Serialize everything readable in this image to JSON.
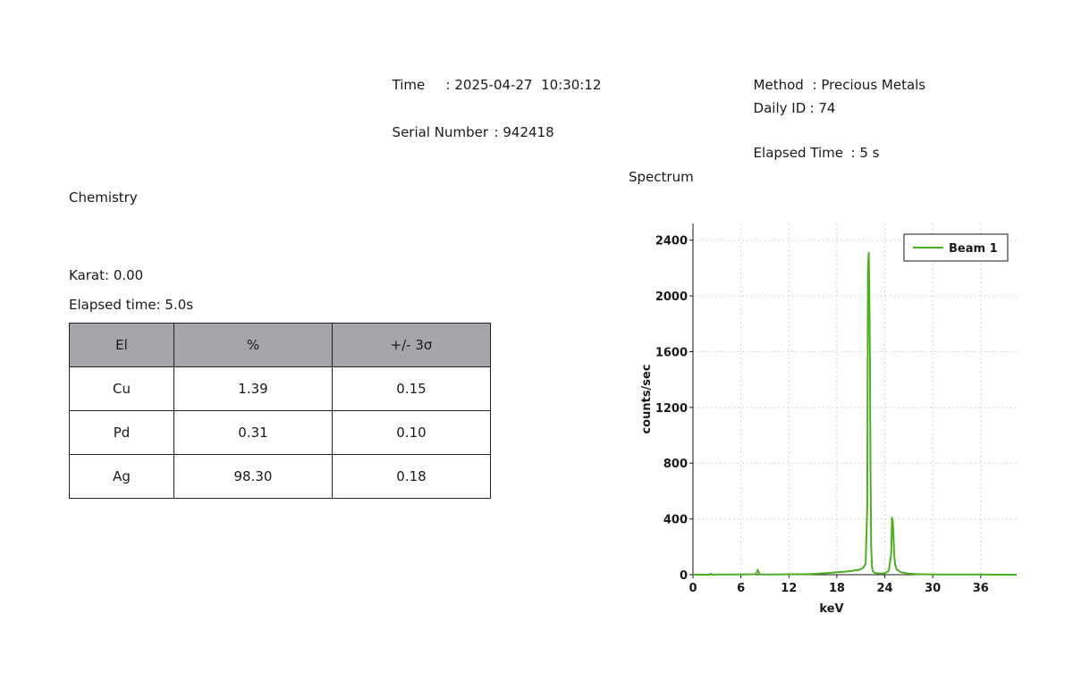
{
  "header": {
    "time_label": "Time",
    "time_value": ": 2025-04-27  10:30:12",
    "serial_label": "Serial Number",
    "serial_value": ": 942418",
    "method_label": "Method",
    "method_value": ": Precious Metals",
    "daily_id_label": "Daily ID",
    "daily_id_value": ": 74",
    "elapsed_label": "Elapsed Time",
    "elapsed_value": ": 5 s"
  },
  "chemistry": {
    "title": "Chemistry",
    "karat": "Karat: 0.00",
    "elapsed": "Elapsed time: 5.0s",
    "columns": [
      "El",
      "%",
      "+/- 3σ"
    ],
    "rows": [
      [
        "Cu",
        "1.39",
        "0.15"
      ],
      [
        "Pd",
        "0.31",
        "0.10"
      ],
      [
        "Ag",
        "98.30",
        "0.18"
      ]
    ]
  },
  "spectrum": {
    "title": "Spectrum"
  },
  "chart_data": {
    "type": "line",
    "xlabel": "keV",
    "ylabel": "counts/sec",
    "xlim": [
      0,
      40.5
    ],
    "ylim": [
      0,
      2520
    ],
    "x_ticks": [
      "0",
      "6",
      "12",
      "18",
      "24",
      "30",
      "36"
    ],
    "y_ticks": [
      "0",
      "400",
      "800",
      "1200",
      "1600",
      "2000",
      "2400"
    ],
    "grid": true,
    "legend_position": "top-right",
    "series": [
      {
        "name": "Beam 1",
        "color": "#4caf1f",
        "x": [
          0,
          2,
          2.2,
          2.4,
          3,
          5,
          7.8,
          8.0,
          8.1,
          8.25,
          8.4,
          8.6,
          10,
          12,
          14,
          15,
          16,
          17,
          18,
          19,
          20,
          20.8,
          21.3,
          21.6,
          21.8,
          21.9,
          22.0,
          22.05,
          22.1,
          22.15,
          22.2,
          22.25,
          22.3,
          22.4,
          22.5,
          22.7,
          23.0,
          23.5,
          24.0,
          24.5,
          24.8,
          24.9,
          25.0,
          25.1,
          25.2,
          25.3,
          25.5,
          26,
          27,
          28,
          29,
          30,
          32,
          34,
          36,
          38,
          40.5
        ],
        "y": [
          0,
          0,
          8,
          0,
          2,
          2,
          3,
          18,
          35,
          15,
          3,
          2,
          2,
          3,
          4,
          6,
          9,
          13,
          18,
          22,
          28,
          36,
          48,
          80,
          500,
          2200,
          2310,
          2100,
          1850,
          1500,
          850,
          500,
          200,
          60,
          25,
          14,
          10,
          8,
          10,
          28,
          150,
          410,
          380,
          250,
          130,
          70,
          38,
          18,
          8,
          4,
          3,
          2,
          1,
          1,
          1,
          0,
          0
        ]
      }
    ]
  }
}
